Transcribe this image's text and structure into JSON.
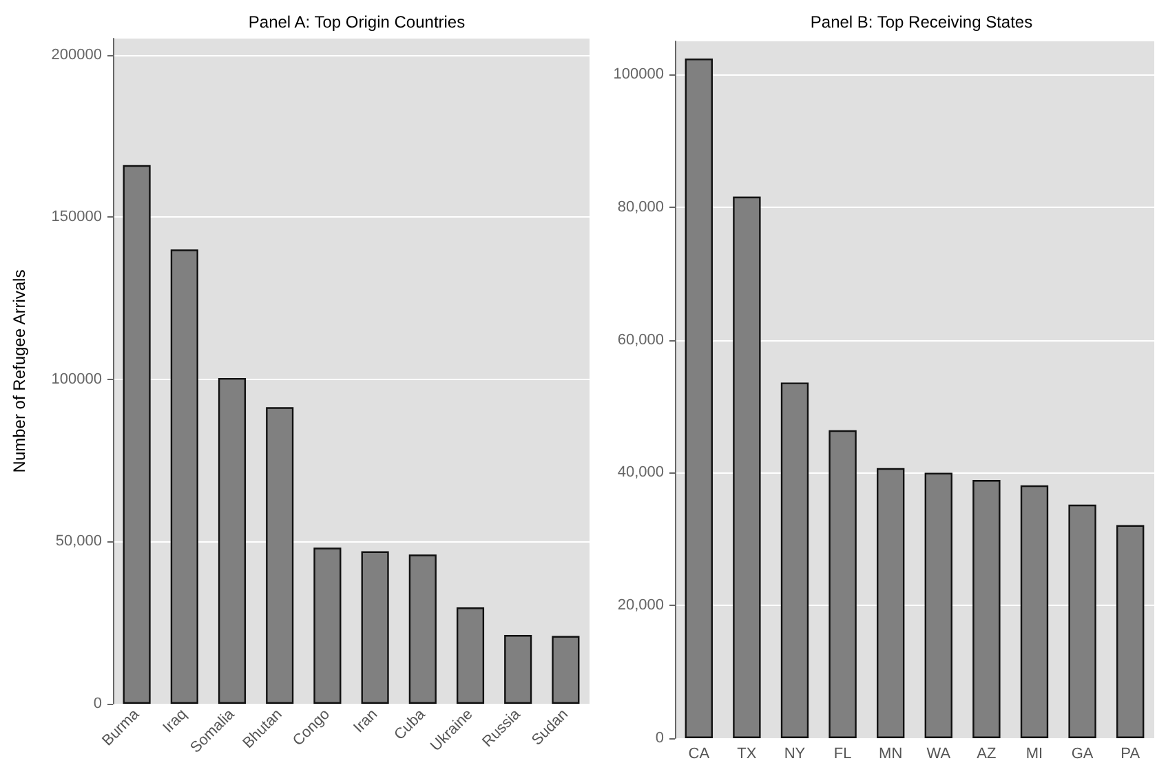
{
  "chart_data": [
    {
      "type": "bar",
      "title": "Panel A: Top Origin Countries",
      "ylabel": "Number of Refugee Arrivals",
      "categories": [
        "Burma",
        "Iraq",
        "Somalia",
        "Bhutan",
        "Congo",
        "Iran",
        "Cuba",
        "Ukraine",
        "Russia",
        "Sudan"
      ],
      "values": [
        166000,
        140000,
        100400,
        91400,
        48100,
        47000,
        46000,
        29700,
        21200,
        20900
      ],
      "color": "#808080",
      "ylim": [
        0,
        205000
      ],
      "yticks": [
        0,
        {
          "value": 50000,
          "label": "50,000"
        },
        100000,
        150000,
        200000
      ],
      "grid": "y"
    },
    {
      "type": "bar",
      "title": "Panel B: Top Receiving States",
      "categories": [
        "CA",
        "TX",
        "NY",
        "FL",
        "MN",
        "WA",
        "AZ",
        "MI",
        "GA",
        "PA"
      ],
      "values": [
        102400,
        81600,
        53600,
        46400,
        40700,
        40000,
        38900,
        38100,
        35200,
        32100
      ],
      "color": "#808080",
      "ylim": [
        0,
        105000
      ],
      "yticks": [
        0,
        {
          "value": 20000,
          "label": "20,000"
        },
        {
          "value": 40000,
          "label": "40,000"
        },
        {
          "value": 60000,
          "label": "60,000"
        },
        {
          "value": 80000,
          "label": "80,000"
        },
        100000
      ],
      "grid": "y"
    }
  ]
}
